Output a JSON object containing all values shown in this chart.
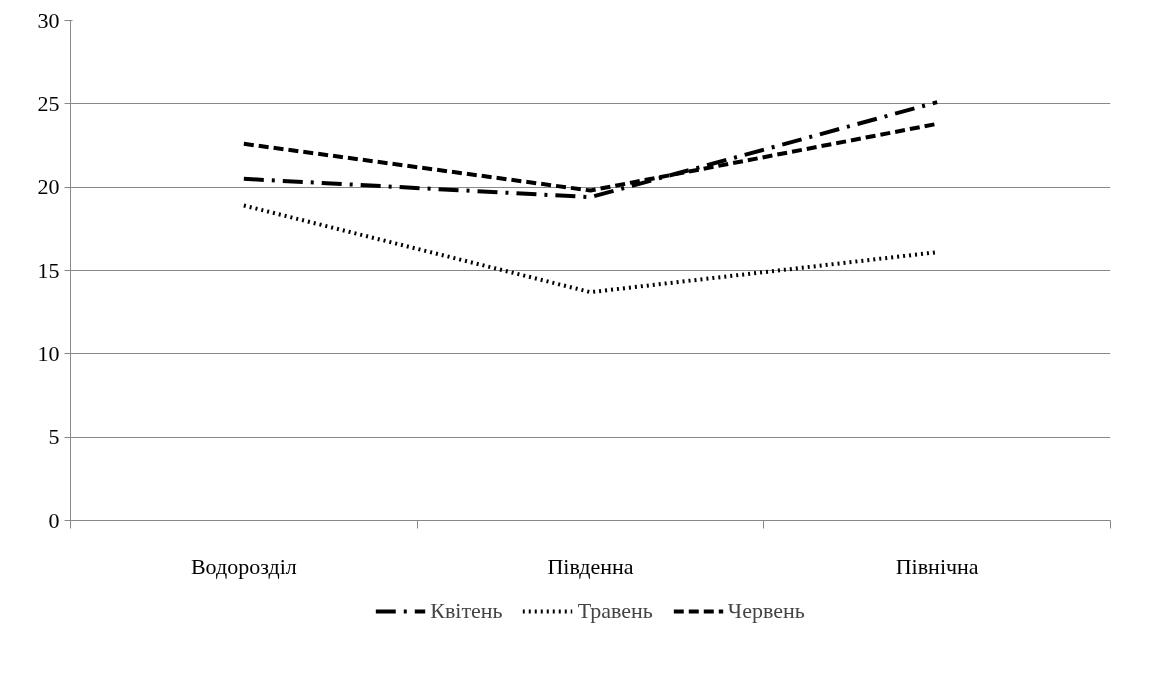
{
  "chart_data": {
    "type": "line",
    "categories": [
      "Водорозділ",
      "Південна",
      "Північна"
    ],
    "series": [
      {
        "name": "Квітень",
        "color": "#000000",
        "line_style": "dashdot",
        "values": [
          20.5,
          19.4,
          25.1
        ]
      },
      {
        "name": "Травень",
        "color": "#000000",
        "line_style": "dotted",
        "values": [
          18.9,
          13.7,
          16.1
        ]
      },
      {
        "name": "Червень",
        "color": "#000000",
        "line_style": "dashed",
        "values": [
          22.6,
          19.8,
          23.8
        ]
      }
    ],
    "ylim": [
      0,
      30
    ],
    "yticks": [
      0,
      5,
      10,
      15,
      20,
      25,
      30
    ],
    "grid": "y",
    "legend": "bottom",
    "marker": "none"
  }
}
